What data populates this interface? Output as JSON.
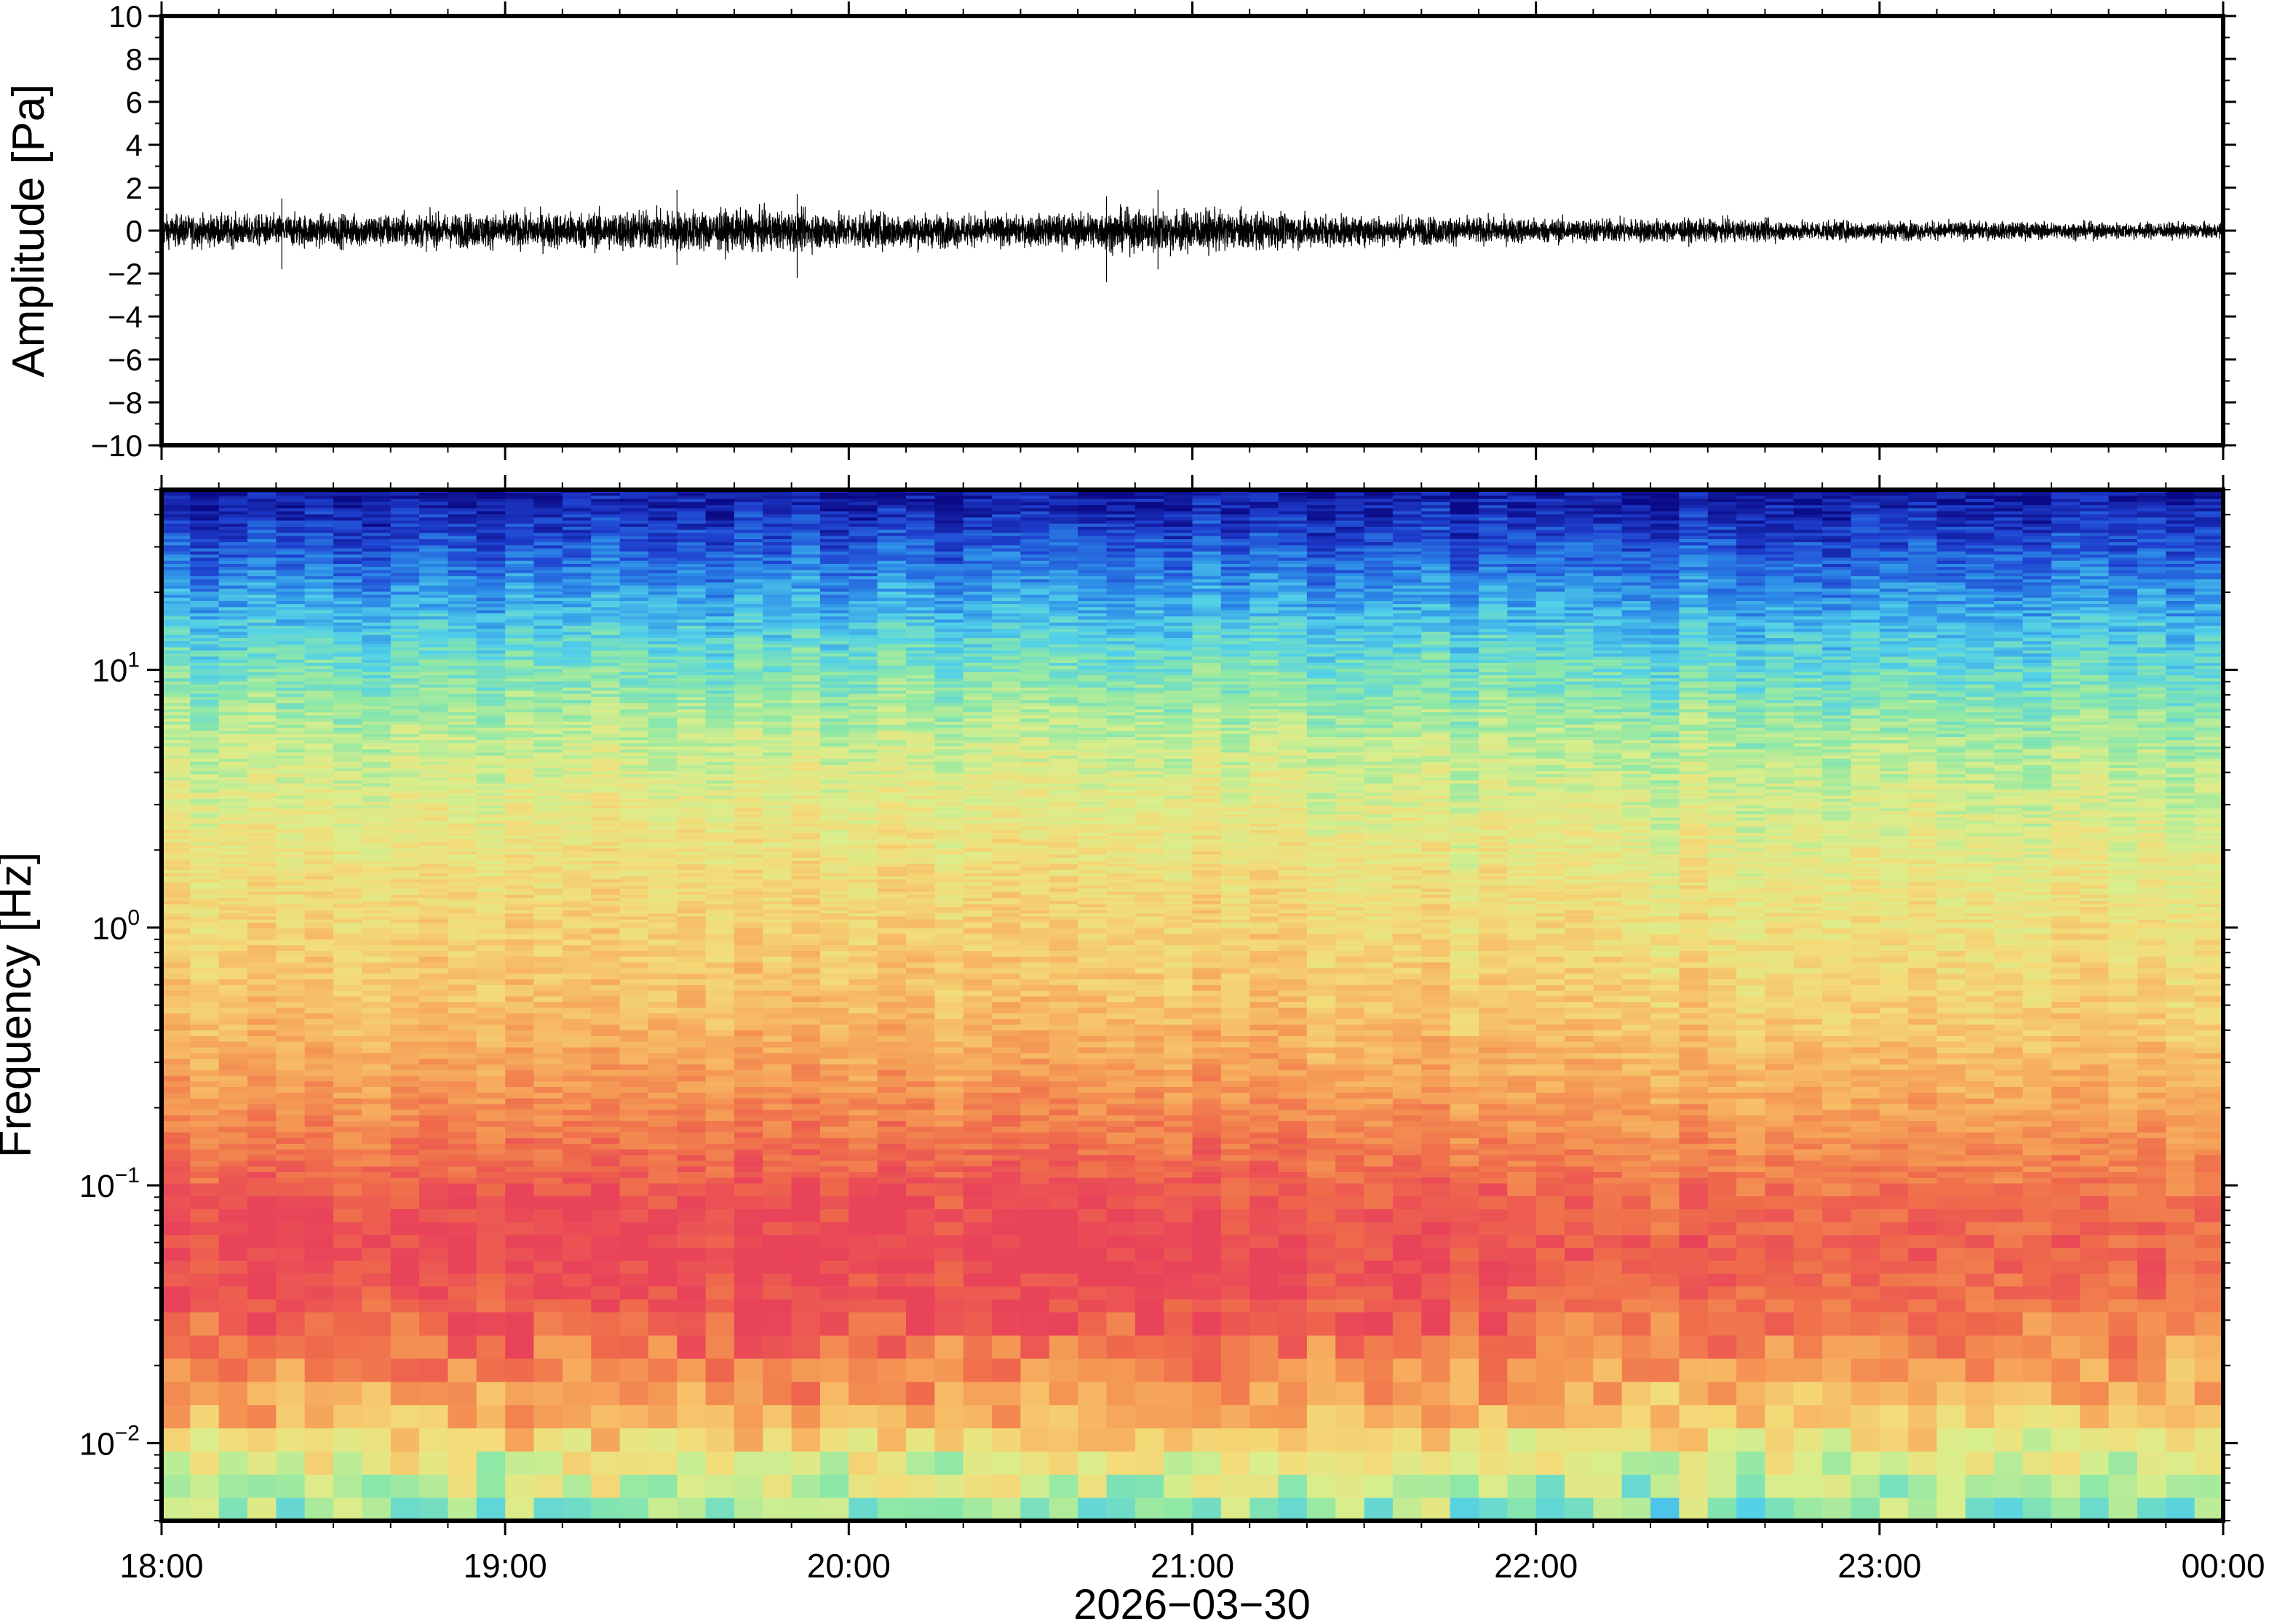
{
  "chart_data": [
    {
      "type": "line",
      "panel": "waveform",
      "title": "",
      "ylabel": "Amplitude [Pa]",
      "xlabel": "",
      "ylim": [
        -10,
        10
      ],
      "xlim": [
        "18:00",
        "00:00"
      ],
      "yticks": [
        {
          "value": 10,
          "label": "10"
        },
        {
          "value": 8,
          "label": "8"
        },
        {
          "value": 6,
          "label": "6"
        },
        {
          "value": 4,
          "label": "4"
        },
        {
          "value": 2,
          "label": "2"
        },
        {
          "value": 0,
          "label": "0"
        },
        {
          "value": -2,
          "label": "−2"
        },
        {
          "value": -4,
          "label": "−4"
        },
        {
          "value": -6,
          "label": "−6"
        },
        {
          "value": -8,
          "label": "−8"
        },
        {
          "value": -10,
          "label": "−10"
        }
      ],
      "envelope": {
        "hours": [
          0.0,
          0.5,
          1.0,
          1.5,
          1.9,
          2.5,
          2.9,
          3.4,
          3.9,
          4.5,
          5.0,
          5.5,
          6.0
        ],
        "amplitude": [
          0.9,
          0.95,
          1.0,
          1.2,
          1.1,
          0.85,
          1.3,
          0.9,
          0.75,
          0.65,
          0.55,
          0.5,
          0.45
        ]
      },
      "peaks": [
        {
          "hour": 0.35,
          "min": -1.8,
          "max": 1.5
        },
        {
          "hour": 1.5,
          "min": -1.6,
          "max": 1.9
        },
        {
          "hour": 1.85,
          "min": -2.2,
          "max": 1.7
        },
        {
          "hour": 2.75,
          "min": -2.4,
          "max": 1.6
        },
        {
          "hour": 2.9,
          "min": -1.8,
          "max": 1.9
        }
      ],
      "color": "#000000"
    },
    {
      "type": "heatmap",
      "panel": "spectrogram",
      "title": "",
      "ylabel": "Frequency [Hz]",
      "xlabel": "2026−03−30",
      "yscale": "log",
      "ylim": [
        0.005,
        50
      ],
      "yticks": [
        {
          "value": 10,
          "base": "10",
          "exp": "1"
        },
        {
          "value": 1,
          "base": "10",
          "exp": "0"
        },
        {
          "value": 0.1,
          "base": "10",
          "exp": "−1"
        },
        {
          "value": 0.01,
          "base": "10",
          "exp": "−2"
        }
      ],
      "xticks": [
        "18:00",
        "19:00",
        "20:00",
        "21:00",
        "22:00",
        "23:00",
        "00:00"
      ],
      "colormap": [
        "#0b0a86",
        "#1f3fcf",
        "#2c8be8",
        "#52d0e8",
        "#8ee8a6",
        "#d9ee8c",
        "#f3dc79",
        "#f7b964",
        "#f49453",
        "#ef6a4b",
        "#e9435a"
      ],
      "spectral_profile": {
        "log10_freq": [
          -2.3,
          -2.1,
          -1.9,
          -1.7,
          -1.5,
          -1.3,
          -1.1,
          -0.9,
          -0.7,
          -0.5,
          -0.3,
          -0.1,
          0.1,
          0.3,
          0.5,
          0.7,
          0.9,
          1.1,
          1.3,
          1.5,
          1.7
        ],
        "level": [
          0.4,
          0.5,
          0.7,
          0.82,
          0.92,
          0.97,
          0.95,
          0.88,
          0.8,
          0.73,
          0.67,
          0.63,
          0.6,
          0.56,
          0.52,
          0.47,
          0.4,
          0.32,
          0.22,
          0.12,
          0.02
        ]
      },
      "time_modulation": {
        "hours": [
          0,
          1,
          2,
          3,
          4,
          5,
          6
        ],
        "factor": [
          1.0,
          1.02,
          1.03,
          1.03,
          0.97,
          0.95,
          0.93
        ]
      }
    }
  ]
}
